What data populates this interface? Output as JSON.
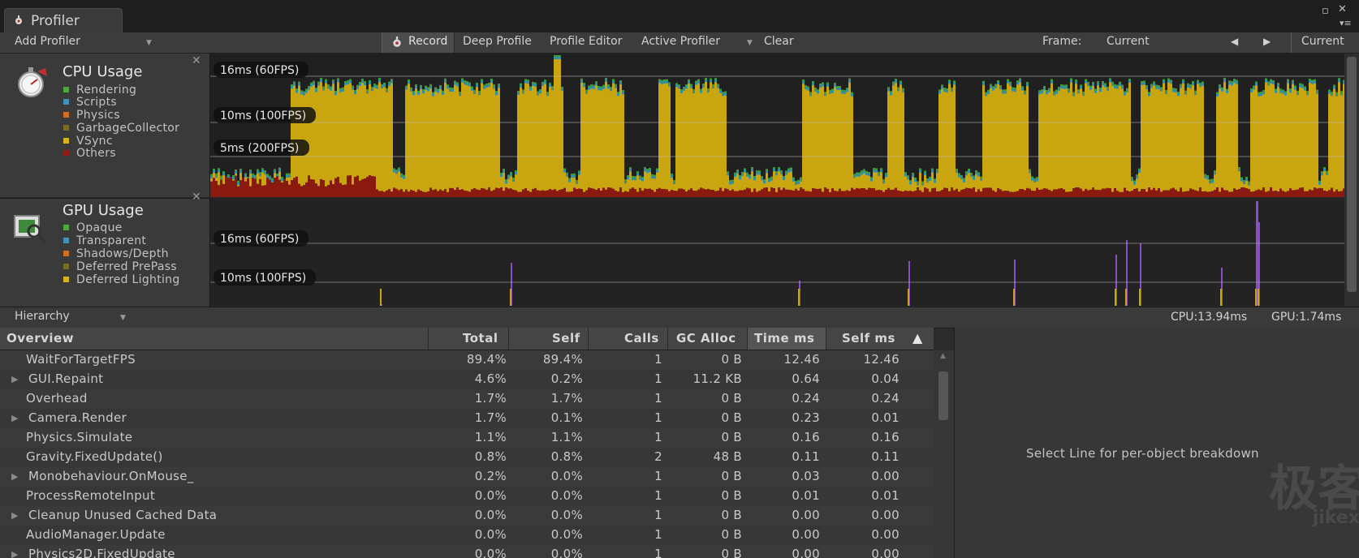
{
  "window": {
    "tab_label": "Profiler",
    "maximize_glyph": "▫",
    "close_glyph": "✕",
    "menu_glyph": "▾≡"
  },
  "toolbar": {
    "add_profiler": "Add Profiler",
    "record": "Record",
    "deep_profile": "Deep Profile",
    "profile_editor": "Profile Editor",
    "active_profiler": "Active Profiler",
    "clear": "Clear",
    "frame_label": "Frame:",
    "frame_value": "Current",
    "current_button": "Current"
  },
  "cpu_module": {
    "title": "CPU Usage",
    "close_glyph": "✕",
    "legend": [
      {
        "label": "Rendering",
        "color": "#4fa83d"
      },
      {
        "label": "Scripts",
        "color": "#3d93b8"
      },
      {
        "label": "Physics",
        "color": "#d46e1e"
      },
      {
        "label": "GarbageCollector",
        "color": "#7a6d22"
      },
      {
        "label": "VSync",
        "color": "#d7b21a"
      },
      {
        "label": "Others",
        "color": "#8e1c11"
      }
    ],
    "markers": [
      "16ms (60FPS)",
      "10ms (100FPS)",
      "5ms (200FPS)"
    ]
  },
  "gpu_module": {
    "title": "GPU Usage",
    "close_glyph": "✕",
    "legend": [
      {
        "label": "Opaque",
        "color": "#4fa83d"
      },
      {
        "label": "Transparent",
        "color": "#3d93b8"
      },
      {
        "label": "Shadows/Depth",
        "color": "#d46e1e"
      },
      {
        "label": "Deferred PrePass",
        "color": "#7a6d22"
      },
      {
        "label": "Deferred Lighting",
        "color": "#d7b21a"
      }
    ],
    "markers": [
      "16ms (60FPS)",
      "10ms (100FPS)"
    ]
  },
  "hierarchy_bar": {
    "view": "Hierarchy",
    "cpu": "CPU:13.94ms",
    "gpu": "GPU:1.74ms"
  },
  "table": {
    "columns": [
      "Overview",
      "Total",
      "Self",
      "Calls",
      "GC Alloc",
      "Time ms",
      "Self ms"
    ],
    "sort_glyph": "▲",
    "rows": [
      {
        "name": "WaitForTargetFPS",
        "expandable": false,
        "total": "89.4%",
        "self": "89.4%",
        "calls": "1",
        "gc": "0 B",
        "time": "12.46",
        "selfms": "12.46"
      },
      {
        "name": "GUI.Repaint",
        "expandable": true,
        "total": "4.6%",
        "self": "0.2%",
        "calls": "1",
        "gc": "11.2 KB",
        "time": "0.64",
        "selfms": "0.04"
      },
      {
        "name": "Overhead",
        "expandable": false,
        "total": "1.7%",
        "self": "1.7%",
        "calls": "1",
        "gc": "0 B",
        "time": "0.24",
        "selfms": "0.24"
      },
      {
        "name": "Camera.Render",
        "expandable": true,
        "total": "1.7%",
        "self": "0.1%",
        "calls": "1",
        "gc": "0 B",
        "time": "0.23",
        "selfms": "0.01"
      },
      {
        "name": "Physics.Simulate",
        "expandable": false,
        "total": "1.1%",
        "self": "1.1%",
        "calls": "1",
        "gc": "0 B",
        "time": "0.16",
        "selfms": "0.16"
      },
      {
        "name": "Gravity.FixedUpdate()",
        "expandable": false,
        "total": "0.8%",
        "self": "0.8%",
        "calls": "2",
        "gc": "48 B",
        "time": "0.11",
        "selfms": "0.11"
      },
      {
        "name": "Monobehaviour.OnMouse_",
        "expandable": true,
        "total": "0.2%",
        "self": "0.0%",
        "calls": "1",
        "gc": "0 B",
        "time": "0.03",
        "selfms": "0.00"
      },
      {
        "name": "ProcessRemoteInput",
        "expandable": false,
        "total": "0.0%",
        "self": "0.0%",
        "calls": "1",
        "gc": "0 B",
        "time": "0.01",
        "selfms": "0.01"
      },
      {
        "name": "Cleanup Unused Cached Data",
        "expandable": true,
        "total": "0.0%",
        "self": "0.0%",
        "calls": "1",
        "gc": "0 B",
        "time": "0.00",
        "selfms": "0.00"
      },
      {
        "name": "AudioManager.Update",
        "expandable": false,
        "total": "0.0%",
        "self": "0.0%",
        "calls": "1",
        "gc": "0 B",
        "time": "0.00",
        "selfms": "0.00"
      },
      {
        "name": "Physics2D.FixedUpdate",
        "expandable": true,
        "total": "0.0%",
        "self": "0.0%",
        "calls": "1",
        "gc": "0 B",
        "time": "0.00",
        "selfms": "0.00"
      }
    ]
  },
  "detail": {
    "message": "Select Line for per-object breakdown",
    "watermark": "极客",
    "watermark_sub": "jikex"
  },
  "colors": {
    "vsync": "#c9a50f",
    "others": "#8a1a10",
    "scripts": "#2f8fa7",
    "rendering": "#3f9a35",
    "gpu_spike": "#8a4fc8"
  }
}
